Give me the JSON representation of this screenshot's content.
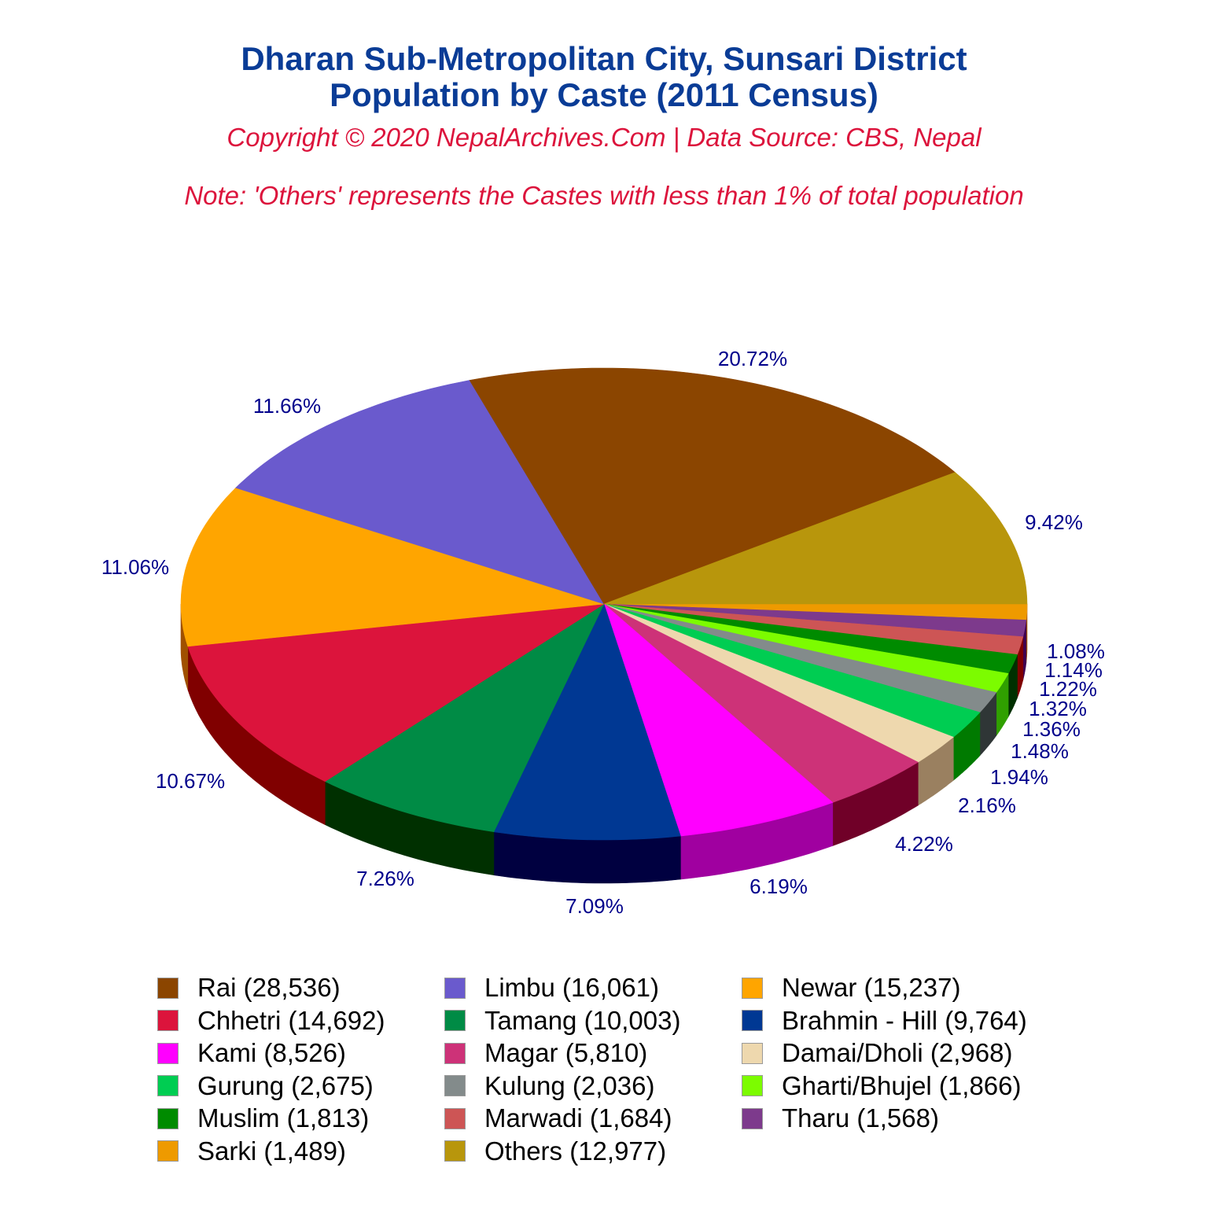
{
  "header": {
    "title_line1": "Dharan Sub-Metropolitan City, Sunsari District",
    "title_line2": "Population by Caste (2011 Census)",
    "copyright": "Copyright © 2020 NepalArchives.Com | Data Source: CBS, Nepal",
    "note": "Note: 'Others' represents the Castes with less than 1% of total population"
  },
  "chart_data": {
    "type": "pie",
    "style": "3d-pie",
    "title": "Dharan Sub-Metropolitan City, Sunsari District — Population by Caste (2011 Census)",
    "subtitle": "Copyright © 2020 NepalArchives.Com | Data Source: CBS, Nepal",
    "note": "Note: 'Others' represents the Castes with less than 1% of total population",
    "legend_position": "bottom",
    "slices": [
      {
        "name": "Rai",
        "value": 28536,
        "percent": "20.72%",
        "color": "#8b4500",
        "side": "#5a2d00"
      },
      {
        "name": "Limbu",
        "value": 16061,
        "percent": "11.66%",
        "color": "#6a5acd",
        "side": "#3f3680"
      },
      {
        "name": "Newar",
        "value": 15237,
        "percent": "11.06%",
        "color": "#ffa500",
        "side": "#a05000"
      },
      {
        "name": "Chhetri",
        "value": 14692,
        "percent": "10.67%",
        "color": "#dc143c",
        "side": "#800000"
      },
      {
        "name": "Tamang",
        "value": 10003,
        "percent": "7.26%",
        "color": "#008b45",
        "side": "#003000"
      },
      {
        "name": "Brahmin - Hill",
        "value": 9764,
        "percent": "7.09%",
        "color": "#003893",
        "side": "#000040"
      },
      {
        "name": "Kami",
        "value": 8526,
        "percent": "6.19%",
        "color": "#ff00ff",
        "side": "#a000a0"
      },
      {
        "name": "Magar",
        "value": 5810,
        "percent": "4.22%",
        "color": "#cd3278",
        "side": "#700028"
      },
      {
        "name": "Damai/Dholi",
        "value": 2968,
        "percent": "2.16%",
        "color": "#eed8ae",
        "side": "#9a8060"
      },
      {
        "name": "Gurung",
        "value": 2675,
        "percent": "1.94%",
        "color": "#00cd52",
        "side": "#007a00"
      },
      {
        "name": "Kulung",
        "value": 2036,
        "percent": "1.48%",
        "color": "#838b8b",
        "side": "#2f3636"
      },
      {
        "name": "Gharti/Bhujel",
        "value": 1866,
        "percent": "1.36%",
        "color": "#7cfc00",
        "side": "#30a000"
      },
      {
        "name": "Muslim",
        "value": 1813,
        "percent": "1.32%",
        "color": "#008b00",
        "side": "#003000"
      },
      {
        "name": "Marwadi",
        "value": 1684,
        "percent": "1.22%",
        "color": "#cd5555",
        "side": "#800000"
      },
      {
        "name": "Tharu",
        "value": 1568,
        "percent": "1.14%",
        "color": "#7d3a8c",
        "side": "#400050"
      },
      {
        "name": "Sarki",
        "value": 1489,
        "percent": "1.08%",
        "color": "#ee9a00",
        "side": "#a05000"
      },
      {
        "name": "Others",
        "value": 12977,
        "percent": "9.42%",
        "color": "#b8960c",
        "side": "#6a5600"
      }
    ],
    "label_positions": {
      "Rai": [
        957,
        465
      ],
      "Limbu": [
        365,
        525
      ],
      "Newar": [
        172,
        730
      ],
      "Chhetri": [
        242,
        1002
      ],
      "Tamang": [
        490,
        1126
      ],
      "Brahmin - Hill": [
        756,
        1161
      ],
      "Kami": [
        990,
        1136
      ],
      "Magar": [
        1175,
        1082
      ],
      "Damai/Dholi": [
        1255,
        1033
      ],
      "Gurung": [
        1296,
        997
      ],
      "Kulung": [
        1322,
        964
      ],
      "Gharti/Bhujel": [
        1337,
        936
      ],
      "Muslim": [
        1345,
        910
      ],
      "Marwadi": [
        1358,
        885
      ],
      "Tharu": [
        1365,
        861
      ],
      "Sarki": [
        1368,
        837
      ],
      "Others": [
        1340,
        673
      ]
    }
  },
  "legend": {
    "items": [
      {
        "label": "Rai (28,536)",
        "color": "#8b4500"
      },
      {
        "label": "Limbu (16,061)",
        "color": "#6a5acd"
      },
      {
        "label": "Newar (15,237)",
        "color": "#ffa500"
      },
      {
        "label": "Chhetri (14,692)",
        "color": "#dc143c"
      },
      {
        "label": "Tamang (10,003)",
        "color": "#008b45"
      },
      {
        "label": "Brahmin - Hill (9,764)",
        "color": "#003893"
      },
      {
        "label": "Kami (8,526)",
        "color": "#ff00ff"
      },
      {
        "label": "Magar (5,810)",
        "color": "#cd3278"
      },
      {
        "label": "Damai/Dholi (2,968)",
        "color": "#eed8ae"
      },
      {
        "label": "Gurung (2,675)",
        "color": "#00cd52"
      },
      {
        "label": "Kulung (2,036)",
        "color": "#838b8b"
      },
      {
        "label": "Gharti/Bhujel (1,866)",
        "color": "#7cfc00"
      },
      {
        "label": "Muslim (1,813)",
        "color": "#008b00"
      },
      {
        "label": "Marwadi (1,684)",
        "color": "#cd5555"
      },
      {
        "label": "Tharu (1,568)",
        "color": "#7d3a8c"
      },
      {
        "label": "Sarki (1,489)",
        "color": "#ee9a00"
      },
      {
        "label": "Others (12,977)",
        "color": "#b8960c"
      }
    ]
  }
}
